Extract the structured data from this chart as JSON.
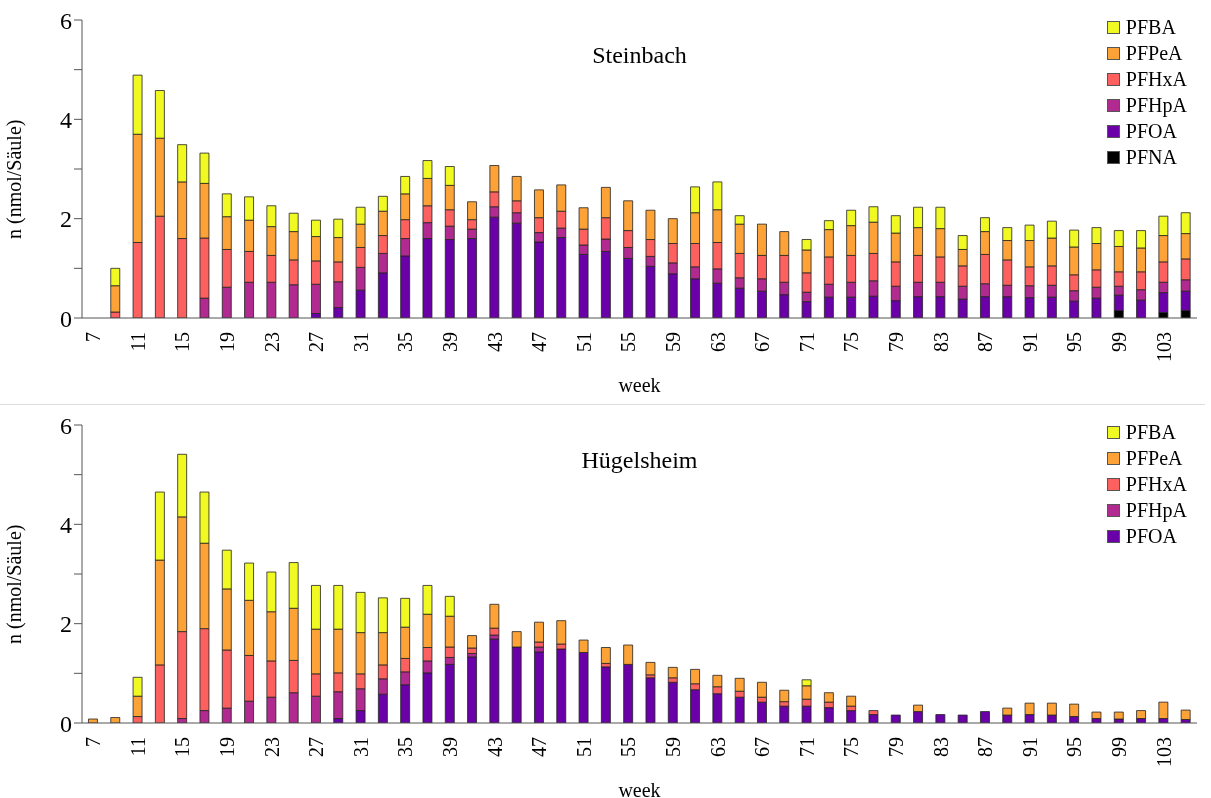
{
  "chart_data": [
    {
      "type": "bar",
      "title": "Steinbach",
      "xlabel": "week",
      "ylabel": "n (nmol/Säule)",
      "stacked": true,
      "legend": "top right",
      "categories": [
        "7",
        null,
        "11",
        null,
        "15",
        null,
        "19",
        null,
        "23",
        null,
        "27",
        null,
        "31",
        null,
        "35",
        null,
        "39",
        null,
        "43",
        null,
        "47",
        null,
        "51",
        null,
        "55",
        null,
        "59",
        null,
        "63",
        null,
        "67",
        null,
        "71",
        null,
        "75",
        null,
        "79",
        null,
        "83",
        null,
        "87",
        null,
        "91",
        null,
        "95",
        null,
        "99",
        null,
        "103",
        null
      ],
      "ylim": [
        0,
        6
      ],
      "yticks": [
        0,
        {
          "value": 1,
          "label": null
        },
        2,
        {
          "value": 3,
          "label": null
        },
        4,
        {
          "value": 5,
          "label": null
        },
        6
      ],
      "series": [
        {
          "name": "PFNA",
          "color": "#000000",
          "values": [
            null,
            null,
            null,
            null,
            null,
            null,
            null,
            null,
            null,
            null,
            null,
            null,
            null,
            null,
            null,
            null,
            null,
            null,
            null,
            null,
            null,
            null,
            null,
            null,
            null,
            null,
            null,
            null,
            null,
            null,
            null,
            null,
            null,
            null,
            null,
            null,
            null,
            null,
            null,
            null,
            null,
            null,
            null,
            null,
            null,
            null,
            0.15,
            null,
            0.11,
            0.15
          ]
        },
        {
          "name": "PFOA",
          "color": "#6a00a8",
          "values": [
            null,
            null,
            null,
            null,
            null,
            null,
            null,
            null,
            null,
            null,
            0.09,
            0.21,
            0.56,
            0.91,
            1.25,
            1.6,
            1.58,
            1.6,
            2.03,
            1.91,
            1.53,
            1.62,
            1.28,
            1.34,
            1.2,
            1.04,
            0.89,
            0.79,
            0.7,
            0.6,
            0.54,
            0.47,
            0.33,
            0.42,
            0.42,
            0.44,
            0.35,
            0.43,
            0.43,
            0.38,
            0.43,
            0.43,
            0.41,
            0.42,
            0.34,
            0.4,
            0.31,
            0.36,
            0.4,
            0.39
          ]
        },
        {
          "name": "PFHpA",
          "color": "#b02a8f",
          "values": [
            null,
            null,
            null,
            null,
            null,
            0.4,
            0.62,
            0.72,
            0.72,
            0.67,
            0.59,
            0.52,
            0.46,
            0.39,
            0.35,
            0.32,
            0.27,
            0.19,
            0.21,
            0.21,
            0.19,
            0.19,
            0.19,
            0.25,
            0.22,
            0.2,
            0.22,
            0.24,
            0.29,
            0.21,
            0.25,
            0.25,
            0.19,
            0.26,
            0.3,
            0.31,
            0.29,
            0.29,
            0.29,
            0.26,
            0.26,
            0.23,
            0.24,
            0.24,
            0.21,
            0.22,
            0.18,
            0.21,
            0.21,
            0.23
          ]
        },
        {
          "name": "PFHxA",
          "color": "#fc6160",
          "values": [
            null,
            0.12,
            1.52,
            2.05,
            1.6,
            1.21,
            0.76,
            0.62,
            0.54,
            0.5,
            0.47,
            0.4,
            0.4,
            0.36,
            0.38,
            0.34,
            0.33,
            0.19,
            0.3,
            0.24,
            0.3,
            0.34,
            0.32,
            0.43,
            0.34,
            0.34,
            0.39,
            0.47,
            0.53,
            0.49,
            0.47,
            0.54,
            0.39,
            0.55,
            0.54,
            0.55,
            0.49,
            0.54,
            0.51,
            0.41,
            0.59,
            0.51,
            0.38,
            0.39,
            0.32,
            0.35,
            0.29,
            0.36,
            0.41,
            0.42
          ]
        },
        {
          "name": "PFPeA",
          "color": "#fca236",
          "values": [
            null,
            0.53,
            2.18,
            1.57,
            1.14,
            1.1,
            0.66,
            0.63,
            0.58,
            0.57,
            0.49,
            0.49,
            0.47,
            0.49,
            0.52,
            0.55,
            0.49,
            0.36,
            0.53,
            0.49,
            0.56,
            0.53,
            0.43,
            0.61,
            0.6,
            0.59,
            0.5,
            0.62,
            0.66,
            0.59,
            0.63,
            0.48,
            0.46,
            0.55,
            0.6,
            0.63,
            0.58,
            0.56,
            0.57,
            0.33,
            0.46,
            0.39,
            0.53,
            0.56,
            0.56,
            0.53,
            0.51,
            0.48,
            0.53,
            0.51
          ]
        },
        {
          "name": "PFBA",
          "color": "#f0f921",
          "values": [
            null,
            0.35,
            1.19,
            0.96,
            0.75,
            0.61,
            0.46,
            0.47,
            0.42,
            0.37,
            0.33,
            0.37,
            0.34,
            0.3,
            0.35,
            0.36,
            0.38,
            null,
            null,
            null,
            null,
            null,
            null,
            null,
            null,
            null,
            null,
            0.52,
            0.56,
            0.17,
            null,
            null,
            0.21,
            0.18,
            0.31,
            0.31,
            0.35,
            0.41,
            0.43,
            0.28,
            0.28,
            0.26,
            0.31,
            0.34,
            0.34,
            0.32,
            0.32,
            0.35,
            0.39,
            0.42
          ]
        }
      ]
    },
    {
      "type": "bar",
      "title": "Hügelsheim",
      "xlabel": "week",
      "ylabel": "n (nmol/Säule)",
      "stacked": true,
      "legend": "top right",
      "categories": [
        "7",
        null,
        "11",
        null,
        "15",
        null,
        "19",
        null,
        "23",
        null,
        "27",
        null,
        "31",
        null,
        "35",
        null,
        "39",
        null,
        "43",
        null,
        "47",
        null,
        "51",
        null,
        "55",
        null,
        "59",
        null,
        "63",
        null,
        "67",
        null,
        "71",
        null,
        "75",
        null,
        "79",
        null,
        "83",
        null,
        "87",
        null,
        "91",
        null,
        "95",
        null,
        "99",
        null,
        "103",
        null
      ],
      "ylim": [
        0,
        6
      ],
      "yticks": [
        0,
        {
          "value": 1,
          "label": null
        },
        2,
        {
          "value": 3,
          "label": null
        },
        4,
        {
          "value": 5,
          "label": null
        },
        6
      ],
      "series": [
        {
          "name": "PFOA",
          "color": "#6a00a8",
          "values": [
            null,
            null,
            null,
            null,
            null,
            null,
            null,
            null,
            null,
            null,
            null,
            0.09,
            0.25,
            0.58,
            0.77,
            1.01,
            1.18,
            1.33,
            1.69,
            1.53,
            1.43,
            1.49,
            1.42,
            1.13,
            1.18,
            0.91,
            0.82,
            0.67,
            0.59,
            0.52,
            0.42,
            0.34,
            0.34,
            0.31,
            0.25,
            0.17,
            0.16,
            0.23,
            0.17,
            0.16,
            0.23,
            0.16,
            0.17,
            0.16,
            0.13,
            0.09,
            0.08,
            0.09,
            0.09,
            0.07
          ]
        },
        {
          "name": "PFHpA",
          "color": "#b02a8f",
          "values": [
            null,
            null,
            null,
            null,
            0.09,
            0.25,
            0.3,
            0.44,
            0.52,
            0.61,
            0.54,
            0.54,
            0.44,
            0.31,
            0.26,
            0.24,
            0.14,
            0.07,
            0.08,
            null,
            0.1,
            null,
            null,
            null,
            null,
            null,
            null,
            null,
            null,
            null,
            null,
            null,
            null,
            null,
            null,
            null,
            null,
            null,
            null,
            null,
            null,
            null,
            null,
            null,
            null,
            null,
            null,
            null,
            null,
            null
          ]
        },
        {
          "name": "PFHxA",
          "color": "#fc6160",
          "values": [
            null,
            null,
            0.13,
            1.17,
            1.75,
            1.65,
            1.17,
            0.92,
            0.73,
            0.65,
            0.45,
            0.38,
            0.3,
            0.28,
            0.27,
            0.27,
            0.21,
            0.11,
            0.14,
            null,
            0.1,
            0.1,
            null,
            0.07,
            null,
            0.06,
            0.09,
            0.12,
            0.14,
            0.12,
            0.1,
            0.09,
            0.14,
            0.11,
            0.09,
            0.08,
            null,
            null,
            null,
            null,
            null,
            null,
            null,
            null,
            null,
            null,
            null,
            null,
            null,
            null
          ]
        },
        {
          "name": "PFPeA",
          "color": "#fca236",
          "values": [
            0.08,
            0.11,
            0.41,
            2.11,
            2.31,
            1.72,
            1.23,
            1.11,
            0.99,
            1.05,
            0.9,
            0.88,
            0.83,
            0.65,
            0.63,
            0.67,
            0.62,
            0.25,
            0.48,
            0.31,
            0.4,
            0.47,
            0.25,
            0.32,
            0.39,
            0.25,
            0.21,
            0.29,
            0.23,
            0.26,
            0.3,
            0.23,
            0.27,
            0.19,
            0.2,
            null,
            null,
            0.13,
            null,
            null,
            null,
            0.14,
            0.23,
            0.24,
            0.25,
            0.13,
            0.14,
            0.16,
            0.33,
            0.19
          ]
        },
        {
          "name": "PFBA",
          "color": "#f0f921",
          "values": [
            null,
            null,
            0.38,
            1.37,
            1.26,
            1.03,
            0.78,
            0.75,
            0.8,
            0.92,
            0.88,
            0.88,
            0.81,
            0.7,
            0.58,
            0.58,
            0.4,
            null,
            null,
            null,
            null,
            null,
            null,
            null,
            null,
            null,
            null,
            null,
            null,
            null,
            null,
            null,
            0.12,
            null,
            null,
            null,
            null,
            null,
            null,
            null,
            null,
            null,
            null,
            null,
            null,
            null,
            null,
            null,
            null,
            null
          ]
        }
      ]
    }
  ]
}
